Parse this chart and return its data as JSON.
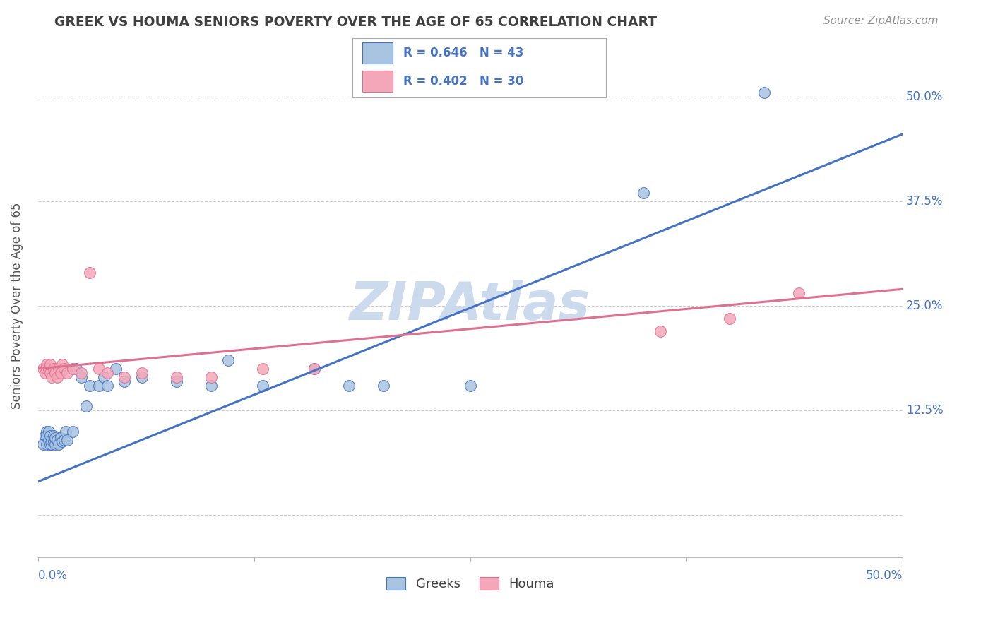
{
  "title": "GREEK VS HOUMA SENIORS POVERTY OVER THE AGE OF 65 CORRELATION CHART",
  "source": "Source: ZipAtlas.com",
  "ylabel": "Seniors Poverty Over the Age of 65",
  "greeks_R": 0.646,
  "greeks_N": 43,
  "houma_R": 0.402,
  "houma_N": 30,
  "greeks_color": "#a8c4e0",
  "houma_color": "#f4a7b9",
  "greeks_line_color": "#4472c4",
  "houma_line_color": "#e07090",
  "title_color": "#404040",
  "source_color": "#909090",
  "axis_label_color": "#4472c4",
  "watermark_color": "#ccdaed",
  "background_color": "#ffffff",
  "grid_color": "#cccccc",
  "legend_label_greeks": "Greeks",
  "legend_label_houma": "Houma",
  "xlim": [
    0.0,
    0.5
  ],
  "ylim": [
    -0.05,
    0.55
  ],
  "greeks_line_x0": 0.0,
  "greeks_line_y0": 0.04,
  "greeks_line_x1": 0.5,
  "greeks_line_y1": 0.455,
  "houma_line_x0": 0.0,
  "houma_line_y0": 0.175,
  "houma_line_x1": 0.5,
  "houma_line_y1": 0.27,
  "greeks_x": [
    0.003,
    0.004,
    0.005,
    0.005,
    0.005,
    0.006,
    0.006,
    0.007,
    0.007,
    0.008,
    0.008,
    0.009,
    0.009,
    0.01,
    0.01,
    0.011,
    0.012,
    0.013,
    0.014,
    0.015,
    0.016,
    0.017,
    0.02,
    0.022,
    0.025,
    0.028,
    0.03,
    0.035,
    0.038,
    0.04,
    0.045,
    0.05,
    0.06,
    0.08,
    0.1,
    0.11,
    0.13,
    0.16,
    0.18,
    0.2,
    0.25,
    0.35,
    0.42
  ],
  "greeks_y": [
    0.085,
    0.095,
    0.085,
    0.1,
    0.095,
    0.09,
    0.1,
    0.085,
    0.095,
    0.085,
    0.09,
    0.088,
    0.095,
    0.085,
    0.092,
    0.09,
    0.085,
    0.092,
    0.088,
    0.09,
    0.1,
    0.09,
    0.1,
    0.175,
    0.165,
    0.13,
    0.155,
    0.155,
    0.165,
    0.155,
    0.175,
    0.16,
    0.165,
    0.16,
    0.155,
    0.185,
    0.155,
    0.175,
    0.155,
    0.155,
    0.155,
    0.385,
    0.505
  ],
  "houma_x": [
    0.003,
    0.004,
    0.005,
    0.005,
    0.006,
    0.007,
    0.007,
    0.008,
    0.009,
    0.01,
    0.011,
    0.012,
    0.013,
    0.014,
    0.015,
    0.017,
    0.02,
    0.025,
    0.03,
    0.035,
    0.04,
    0.05,
    0.06,
    0.08,
    0.1,
    0.13,
    0.16,
    0.36,
    0.4,
    0.44
  ],
  "houma_y": [
    0.175,
    0.17,
    0.175,
    0.18,
    0.175,
    0.17,
    0.18,
    0.165,
    0.175,
    0.17,
    0.165,
    0.175,
    0.17,
    0.18,
    0.175,
    0.17,
    0.175,
    0.17,
    0.29,
    0.175,
    0.17,
    0.165,
    0.17,
    0.165,
    0.165,
    0.175,
    0.175,
    0.22,
    0.235,
    0.265
  ]
}
